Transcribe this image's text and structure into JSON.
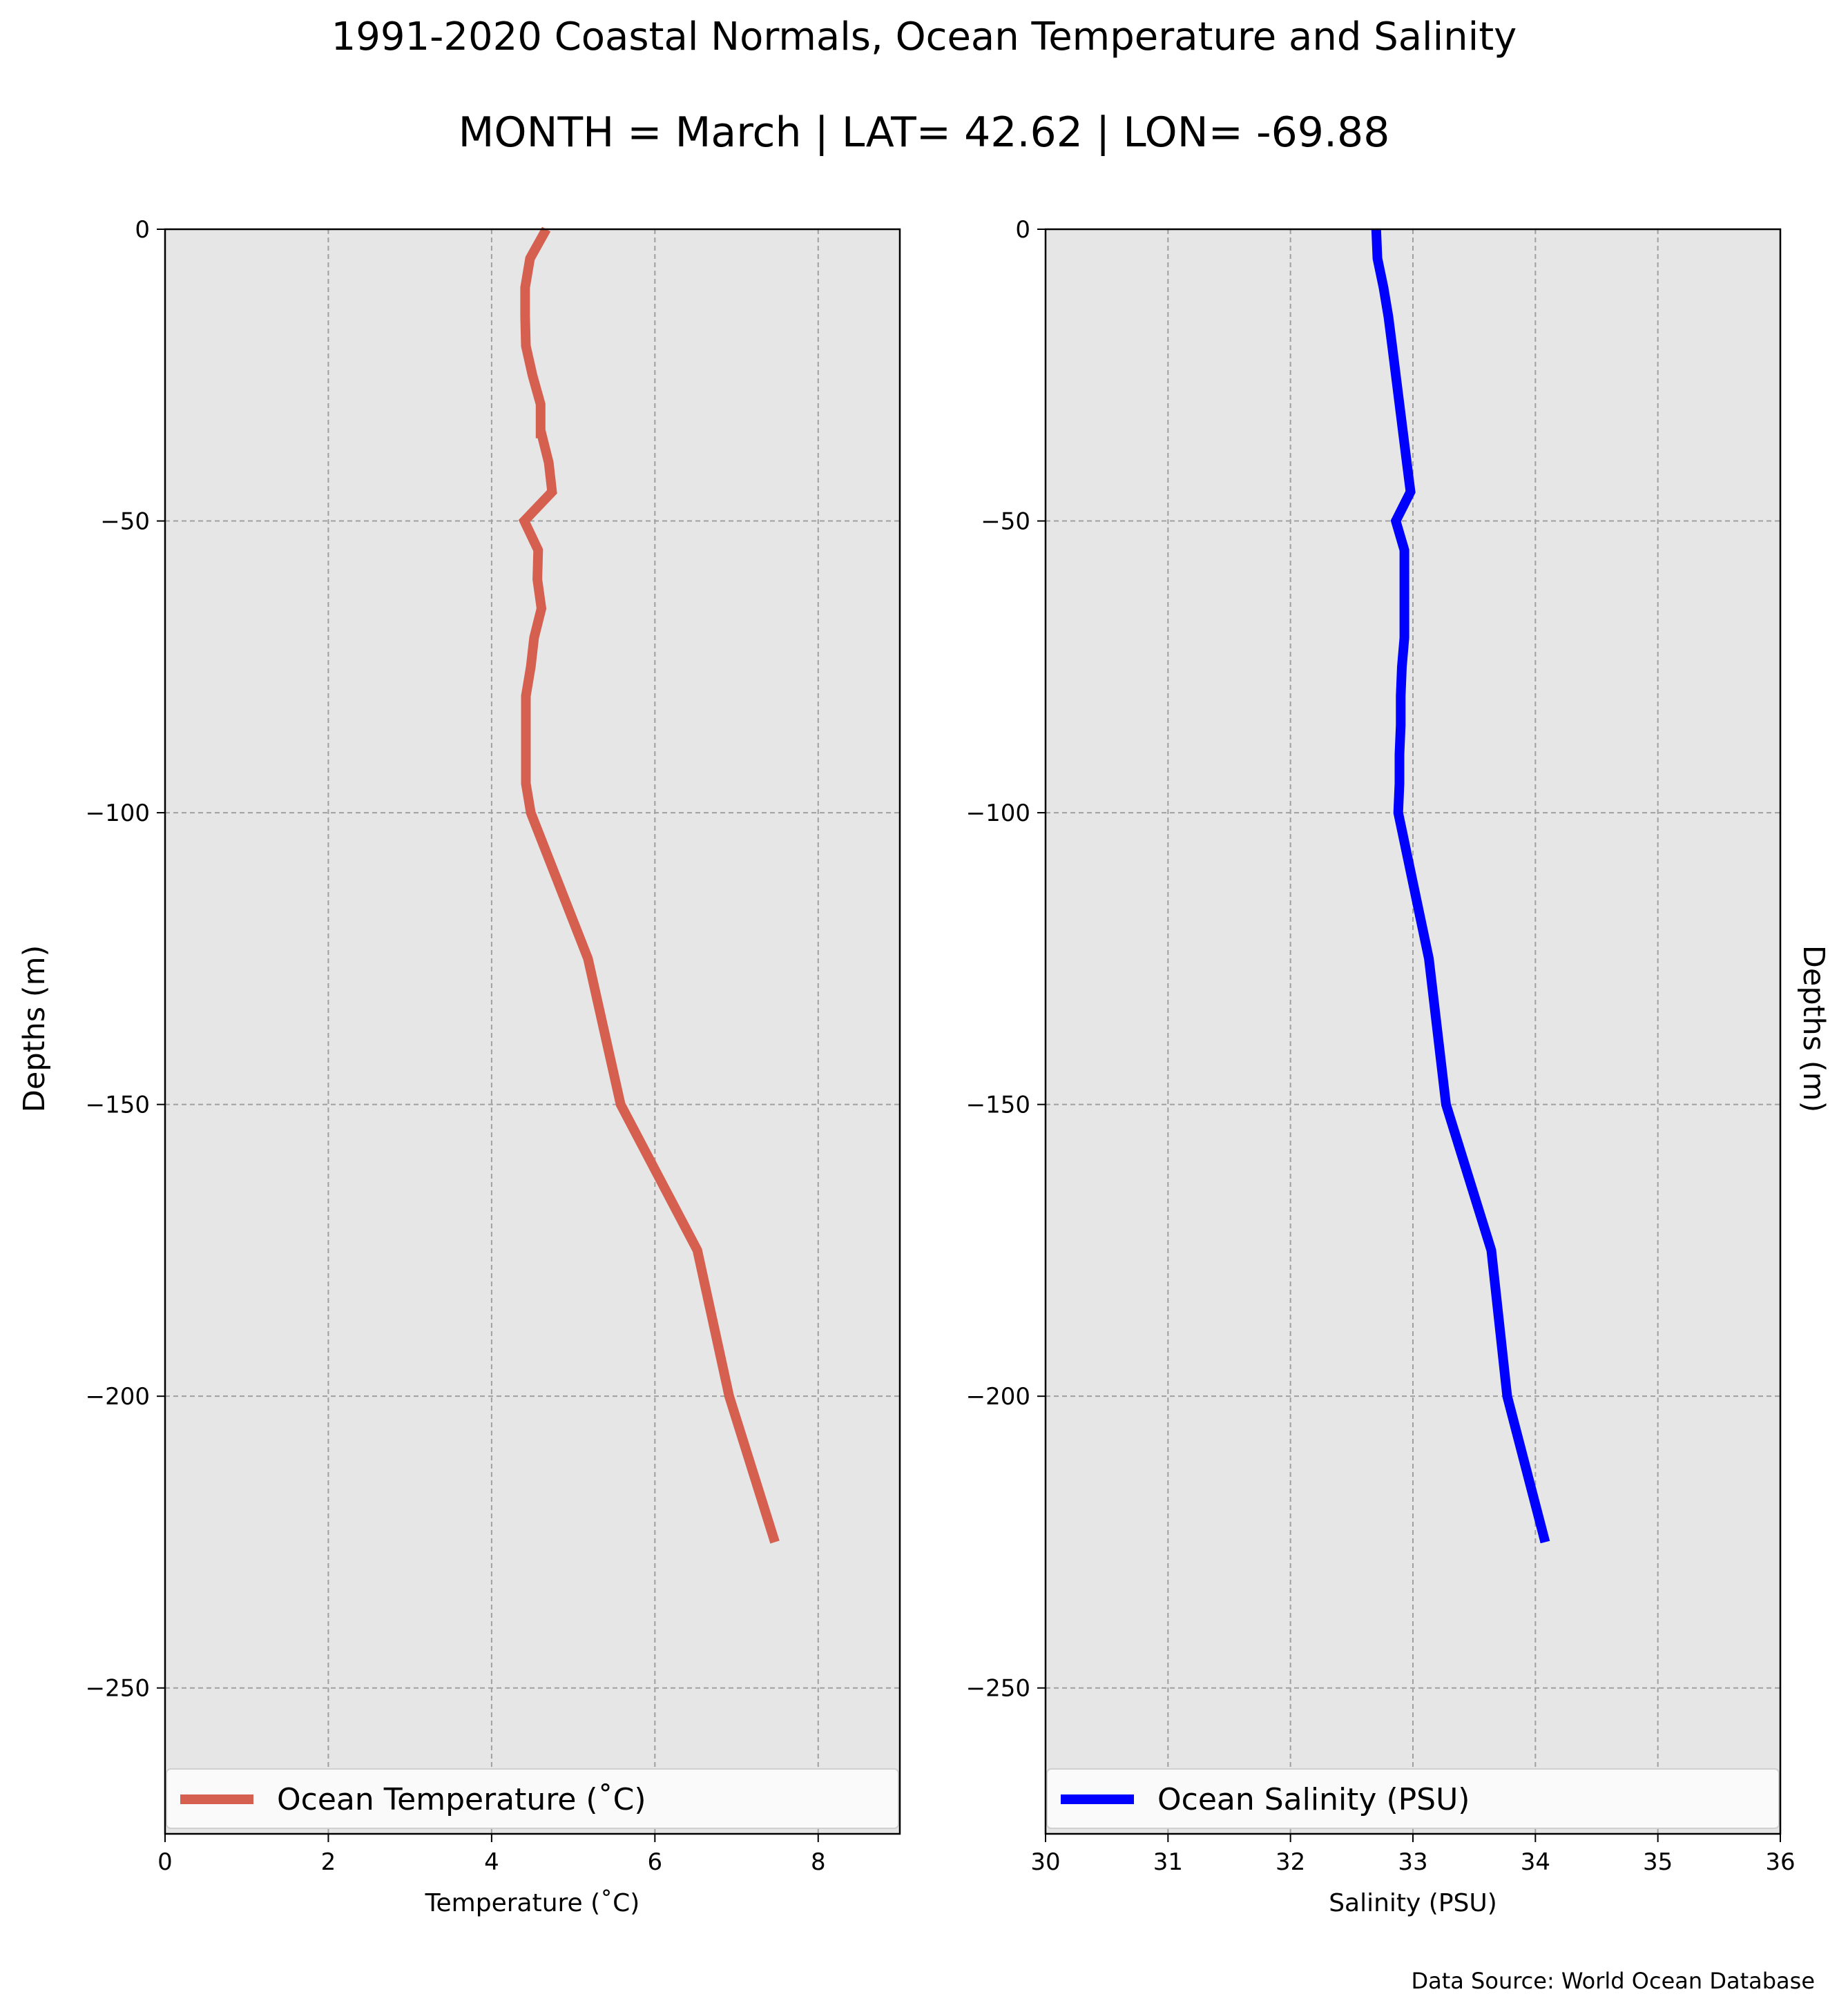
{
  "title": "1991-2020 Coastal Normals, Ocean Temperature and Salinity",
  "subtitle": "MONTH = March | LAT= 42.62 | LON= -69.88",
  "source_note": "Data Source: World Ocean Database",
  "colors": {
    "temperature_line": "#d66050",
    "salinity_line": "#0000ff",
    "plot_background": "#e6e6e6",
    "grid": "#a0a0a0"
  },
  "chart_data": [
    {
      "type": "line",
      "xlabel": "Temperature ($^\\circ$C)",
      "xlabel_display": "Temperature (˚C)",
      "ylabel": "Depths (m)",
      "xlim": [
        0,
        9
      ],
      "ylim": [
        -275,
        0
      ],
      "xticks": [
        0,
        2,
        4,
        6,
        8
      ],
      "xtick_labels": [
        "0",
        "2",
        "4",
        "6",
        "8"
      ],
      "yticks": [
        0,
        -50,
        -100,
        -150,
        -200,
        -250
      ],
      "ytick_labels": [
        "0",
        "−50",
        "−100",
        "−150",
        "−200",
        "−250"
      ],
      "grid": true,
      "legend": "bottom",
      "series": [
        {
          "name": "Ocean Temperature (˚C)",
          "x": [
            4.67,
            4.47,
            4.41,
            4.41,
            4.42,
            4.5,
            4.6,
            4.6,
            4.61,
            4.7,
            4.74,
            4.4,
            4.57,
            4.56,
            4.56,
            4.61,
            4.52,
            4.48,
            4.42,
            4.42,
            4.42,
            4.48,
            5.18,
            5.58,
            6.52,
            6.91,
            7.47
          ],
          "y": [
            0,
            -5,
            -10,
            -15,
            -20,
            -25,
            -30,
            -35,
            -35,
            -40,
            -45,
            -50,
            -55,
            -60,
            -60,
            -65,
            -70,
            -75,
            -80,
            -90,
            -95,
            -100,
            -125,
            -150,
            -175,
            -200,
            -225
          ]
        }
      ]
    },
    {
      "type": "line",
      "xlabel": "Salinity (PSU)",
      "ylabel": "Depths (m)",
      "xlim": [
        30,
        36
      ],
      "ylim": [
        -275,
        0
      ],
      "xticks": [
        30,
        31,
        32,
        33,
        34,
        35,
        36
      ],
      "xtick_labels": [
        "30",
        "31",
        "32",
        "33",
        "34",
        "35",
        "36"
      ],
      "yticks": [
        0,
        -50,
        -100,
        -150,
        -200,
        -250
      ],
      "ytick_labels": [
        "0",
        "−50",
        "−100",
        "−150",
        "−200",
        "−250"
      ],
      "grid": true,
      "legend": "bottom",
      "series": [
        {
          "name": "Ocean Salinity (PSU)",
          "x": [
            32.7,
            32.71,
            32.76,
            32.8,
            32.83,
            32.86,
            32.89,
            32.92,
            32.95,
            32.98,
            32.86,
            32.93,
            32.93,
            32.93,
            32.93,
            32.91,
            32.9,
            32.9,
            32.89,
            32.89,
            32.88,
            33.13,
            33.27,
            33.64,
            33.77,
            34.08
          ],
          "y": [
            0,
            -5,
            -10,
            -15,
            -20,
            -25,
            -30,
            -35,
            -40,
            -45,
            -50,
            -55,
            -60,
            -65,
            -70,
            -75,
            -80,
            -85,
            -90,
            -95,
            -100,
            -125,
            -150,
            -175,
            -200,
            -225
          ]
        }
      ]
    }
  ]
}
